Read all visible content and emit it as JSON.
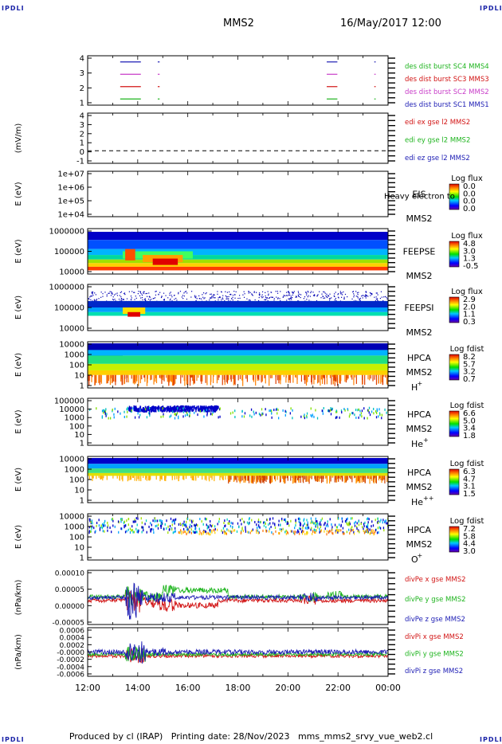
{
  "corner_label": "IPDLI",
  "header": {
    "mission": "MMS2",
    "datetime": "16/May/2017 12:00"
  },
  "footer": "Produced by cl (IRAP)   Printing date: 28/Nov/2023   mms_mms2_srvy_vue_web2.cl",
  "x_axis": {
    "ticks": [
      "12:00",
      "14:00",
      "16:00",
      "18:00",
      "20:00",
      "22:00",
      "00:00"
    ]
  },
  "chart_data": [
    {
      "type": "line",
      "panel": "burst",
      "ylim": [
        0.5,
        4.5
      ],
      "yticks": [
        "4",
        "3",
        "2",
        "1"
      ],
      "series": [
        {
          "name": "des dist burst SC1 MMS1",
          "color": "#1c1cb4",
          "y": 4,
          "intervals": [
            [
              13.3,
              14.1
            ],
            [
              14.8,
              14.85
            ],
            [
              21.55,
              21.95
            ],
            [
              23.45,
              23.48
            ]
          ]
        },
        {
          "name": "des dist burst SC2 MMS2",
          "color": "#c83cc8",
          "y": 3,
          "intervals": [
            [
              13.3,
              14.1
            ],
            [
              14.8,
              14.85
            ],
            [
              21.55,
              21.95
            ],
            [
              23.45,
              23.48
            ]
          ]
        },
        {
          "name": "des dist burst SC3 MMS3",
          "color": "#d21414",
          "y": 2,
          "intervals": [
            [
              13.3,
              14.1
            ],
            [
              14.8,
              14.85
            ],
            [
              21.55,
              21.95
            ],
            [
              23.45,
              23.48
            ]
          ]
        },
        {
          "name": "des dist burst SC4 MMS4",
          "color": "#1eb41e",
          "y": 1,
          "intervals": [
            [
              13.3,
              14.1
            ],
            [
              14.8,
              14.85
            ],
            [
              21.55,
              21.95
            ],
            [
              23.45,
              23.48
            ]
          ]
        }
      ]
    },
    {
      "type": "line",
      "panel": "edi",
      "ylabel": "(mV/m)",
      "ylim": [
        -1.5,
        4.5
      ],
      "yticks": [
        "4",
        "3",
        "2",
        "1",
        "0",
        "-1"
      ],
      "zero_line": true,
      "legend": [
        {
          "name": "edi ex gse l2 MMS2",
          "color": "#d21414"
        },
        {
          "name": "edi ey gse l2 MMS2",
          "color": "#1eb41e"
        },
        {
          "name": "edi ez gse l2 MMS2",
          "color": "#1c1cb4"
        }
      ]
    },
    {
      "type": "heatmap",
      "panel": "eis",
      "ylabel": "E (eV)",
      "ylim": [
        10000,
        10000000
      ],
      "yticks": [
        "1e+07",
        "1e+06",
        "1e+05",
        "1e+04"
      ],
      "instrument": "EIS",
      "spacecraft": "MMS2",
      "note": "Heavy electron to",
      "colorbar": {
        "title": "Log flux",
        "labels": [
          "0.0",
          "0.0",
          "0.0",
          "0.0"
        ]
      }
    },
    {
      "type": "heatmap",
      "panel": "feepse",
      "ylabel": "E (eV)",
      "ylim": [
        10000,
        1000000
      ],
      "yticks": [
        "1000000",
        "100000",
        "10000"
      ],
      "instrument": "FEEPSE",
      "spacecraft": "MMS2",
      "colorbar": {
        "title": "Log flux",
        "labels": [
          "4.8",
          "3.0",
          "1.3",
          "-0.5"
        ]
      }
    },
    {
      "type": "heatmap",
      "panel": "feepsi",
      "ylabel": "E (eV)",
      "ylim": [
        10000,
        1000000
      ],
      "yticks": [
        "1000000",
        "100000",
        "10000"
      ],
      "instrument": "FEEPSI",
      "spacecraft": "MMS2",
      "colorbar": {
        "title": "Log flux",
        "labels": [
          "2.9",
          "2.0",
          "1.1",
          "0.3"
        ]
      }
    },
    {
      "type": "heatmap",
      "panel": "hpca_h",
      "ylabel": "E (eV)",
      "ylim": [
        1,
        10000
      ],
      "yticks": [
        "10000",
        "1000",
        "100",
        "10",
        "1"
      ],
      "instrument": "HPCA",
      "spacecraft": "MMS2",
      "species": "H",
      "species_sup": "+",
      "colorbar": {
        "title": "Log fdist",
        "labels": [
          "8.2",
          "5.7",
          "3.2",
          "0.7"
        ]
      }
    },
    {
      "type": "heatmap",
      "panel": "hpca_he",
      "ylabel": "E (eV)",
      "ylim": [
        1,
        100000
      ],
      "yticks": [
        "100000",
        "10000",
        "1000",
        "100",
        "10",
        "1"
      ],
      "instrument": "HPCA",
      "spacecraft": "MMS2",
      "species": "He",
      "species_sup": "+",
      "colorbar": {
        "title": "Log fdist",
        "labels": [
          "6.6",
          "5.0",
          "3.4",
          "1.8"
        ]
      }
    },
    {
      "type": "heatmap",
      "panel": "hpca_hepp",
      "ylabel": "E (eV)",
      "ylim": [
        1,
        10000
      ],
      "yticks": [
        "10000",
        "1000",
        "100",
        "10",
        "1"
      ],
      "instrument": "HPCA",
      "spacecraft": "MMS2",
      "species": "He",
      "species_sup": "++",
      "colorbar": {
        "title": "Log fdist",
        "labels": [
          "6.3",
          "4.7",
          "3.1",
          "1.5"
        ]
      }
    },
    {
      "type": "heatmap",
      "panel": "hpca_o",
      "ylabel": "E (eV)",
      "ylim": [
        1,
        10000
      ],
      "yticks": [
        "10000",
        "1000",
        "100",
        "10",
        "1"
      ],
      "instrument": "HPCA",
      "spacecraft": "MMS2",
      "species": "O",
      "species_sup": "+",
      "colorbar": {
        "title": "Log fdist",
        "labels": [
          "7.2",
          "5.8",
          "4.4",
          "3.0"
        ]
      }
    },
    {
      "type": "line",
      "panel": "divpe",
      "ylabel": "(nPa/km)",
      "ylim": [
        -8e-05,
        0.00011
      ],
      "yticks": [
        "0.00010",
        "0.00005",
        "0.00000",
        "-0.00005"
      ],
      "legend": [
        {
          "name": "divPe x gse MMS2",
          "color": "#d21414"
        },
        {
          "name": "divPe y gse MMS2",
          "color": "#1eb41e"
        },
        {
          "name": "divPe z gse MMS2",
          "color": "#1c1cb4"
        }
      ]
    },
    {
      "type": "line",
      "panel": "divpi",
      "ylabel": "(nPa/km)",
      "ylim": [
        -0.00065,
        0.00065
      ],
      "yticks": [
        "0.0006",
        "0.0004",
        "0.0002",
        "-0.0000",
        "-0.0002",
        "-0.0004",
        "-0.0006"
      ],
      "legend": [
        {
          "name": "divPi x gse MMS2",
          "color": "#d21414"
        },
        {
          "name": "divPi y gse MMS2",
          "color": "#1eb41e"
        },
        {
          "name": "divPi z gse MMS2",
          "color": "#1c1cb4"
        }
      ]
    }
  ]
}
